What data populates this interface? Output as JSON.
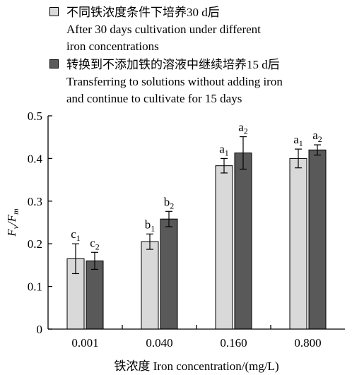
{
  "legend": {
    "entries": [
      {
        "line_cn": "不同铁浓度条件下培养30 d后",
        "line_en1": "After 30 days cultivation under different",
        "line_en2": "iron concentrations",
        "color": "#d9d9d9"
      },
      {
        "line_cn": "转换到不添加铁的溶液中继续培养15 d后",
        "line_en1": "Transferring to solutions without adding iron",
        "line_en2": "and continue to cultivate for 15 days",
        "color": "#595959"
      }
    ]
  },
  "chart_data": {
    "type": "bar",
    "xlabel": "铁浓度 Iron concentration/(mg/L)",
    "ylabel": {
      "base": "F",
      "sub1": "v",
      "sep": "/F",
      "sub2": "m"
    },
    "categories": [
      "0.001",
      "0.040",
      "0.160",
      "0.800"
    ],
    "ylim": [
      0,
      0.5
    ],
    "yticks": [
      "0",
      "0.1",
      "0.2",
      "0.3",
      "0.4",
      "0.5"
    ],
    "series": [
      {
        "values": [
          0.165,
          0.205,
          0.383,
          0.4
        ],
        "errors": [
          0.035,
          0.018,
          0.017,
          0.022
        ],
        "labels": [
          [
            "c",
            "1"
          ],
          [
            "b",
            "1"
          ],
          [
            "a",
            "1"
          ],
          [
            "a",
            "1"
          ]
        ],
        "color": "#d9d9d9"
      },
      {
        "values": [
          0.16,
          0.258,
          0.413,
          0.42
        ],
        "errors": [
          0.02,
          0.018,
          0.038,
          0.012
        ],
        "labels": [
          [
            "c",
            "2"
          ],
          [
            "b",
            "2"
          ],
          [
            "a",
            "2"
          ],
          [
            "a",
            "2"
          ]
        ],
        "color": "#595959"
      }
    ]
  }
}
